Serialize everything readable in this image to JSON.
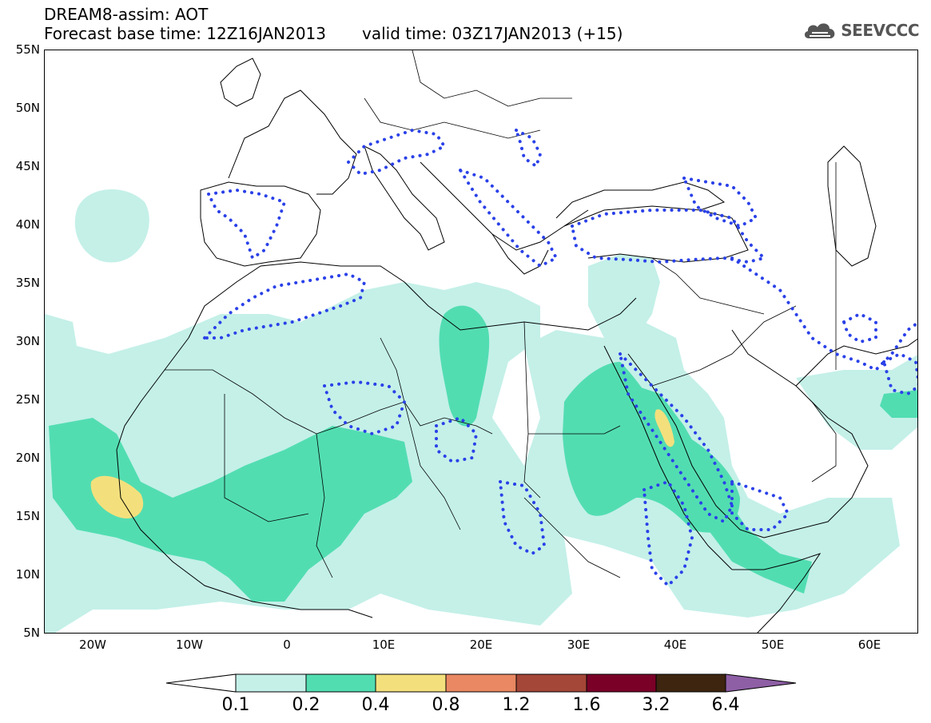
{
  "header": {
    "title": "DREAM8-assim: AOT",
    "base_time": "Forecast base time: 12Z16JAN2013",
    "valid_time": "valid time: 03Z17JAN2013 (+15)"
  },
  "logo": {
    "text": "SEEVCCC",
    "icon": "cloud-icon"
  },
  "map": {
    "lat_labels": [
      "55N",
      "50N",
      "45N",
      "40N",
      "35N",
      "30N",
      "25N",
      "20N",
      "15N",
      "10N",
      "5N"
    ],
    "lon_labels": [
      "20W",
      "10W",
      "0",
      "10E",
      "20E",
      "30E",
      "40E",
      "50E",
      "60E"
    ],
    "extent": {
      "lon_min": -25,
      "lon_max": 65,
      "lat_min": 5,
      "lat_max": 55
    }
  },
  "legend": {
    "labels": [
      "0.1",
      "0.2",
      "0.4",
      "0.8",
      "1.2",
      "1.6",
      "3.2",
      "6.4"
    ],
    "colors": [
      "#ffffff",
      "#c4f0e8",
      "#52ddb1",
      "#f3e07d",
      "#e98862",
      "#a44638",
      "#7a0027",
      "#3e2510",
      "#8e5fa5"
    ]
  }
}
